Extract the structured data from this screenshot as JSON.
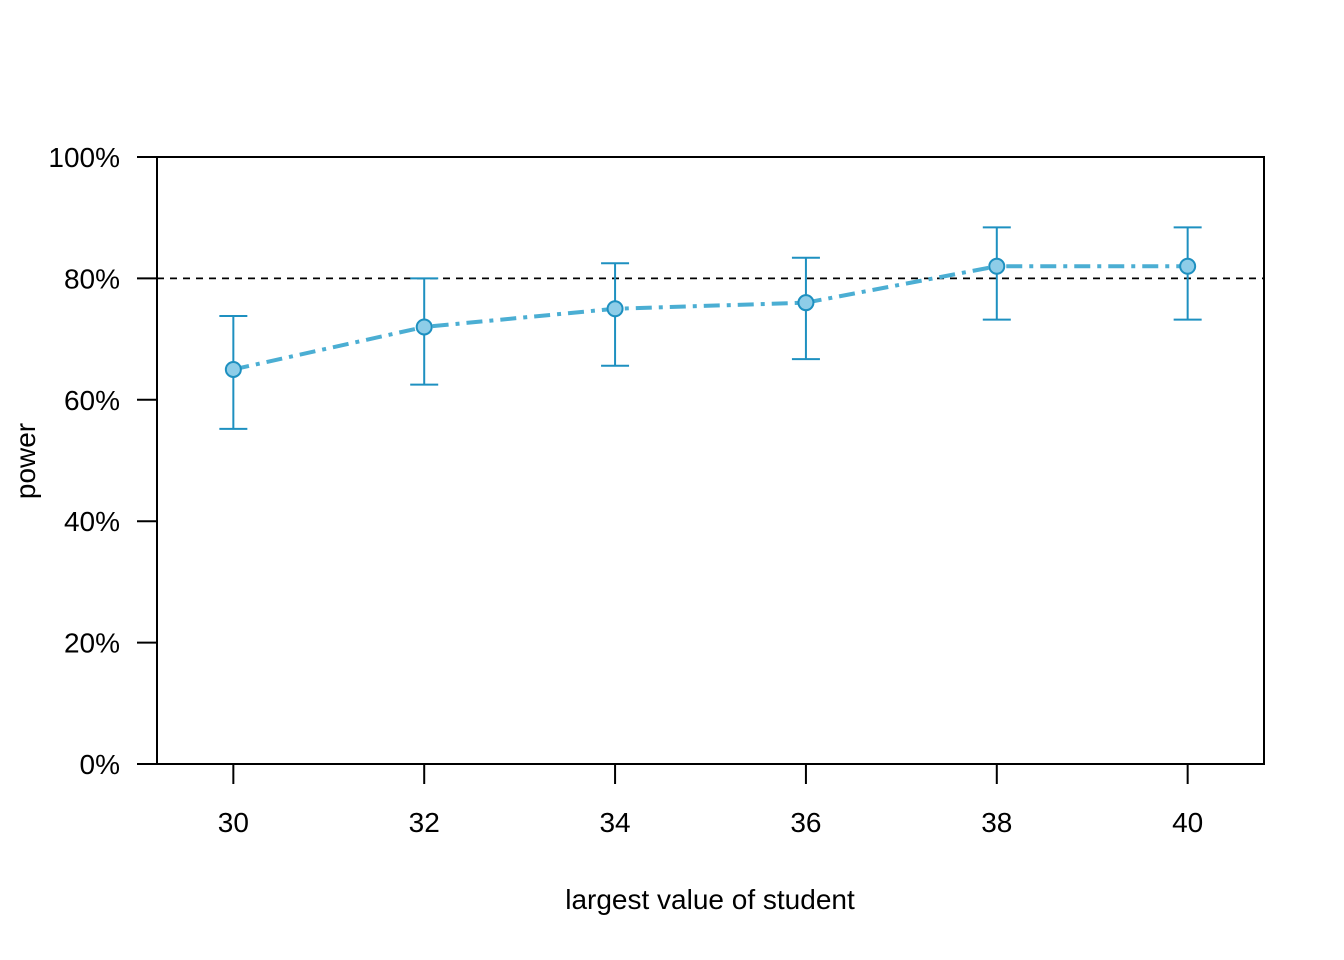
{
  "chart_data": {
    "type": "line",
    "title": "",
    "xlabel": "largest value of student",
    "ylabel": "power",
    "x": [
      30,
      32,
      34,
      36,
      38,
      40
    ],
    "series": [
      {
        "values": [
          65,
          72,
          75,
          76,
          82,
          82
        ],
        "ci_lower": [
          55.2,
          62.5,
          65.6,
          66.7,
          73.2,
          73.2
        ],
        "ci_upper": [
          73.8,
          80.0,
          82.5,
          83.4,
          88.4,
          88.4
        ],
        "color": "#4BAED3",
        "error_bar_color": "#1E90C0",
        "marker_fill": "#8ECDE8",
        "line_style": "dash-dot"
      }
    ],
    "reference_line": {
      "y": 80,
      "style": "dashed",
      "color": "#000000"
    },
    "xlim": [
      29.2,
      40.8
    ],
    "ylim": [
      0,
      100
    ],
    "x_ticks": [
      30,
      32,
      34,
      36,
      38,
      40
    ],
    "y_ticks": [
      0,
      20,
      40,
      60,
      80,
      100
    ],
    "y_tick_labels": [
      "0%",
      "20%",
      "40%",
      "60%",
      "80%",
      "100%"
    ],
    "grid": false,
    "legend": "none"
  }
}
